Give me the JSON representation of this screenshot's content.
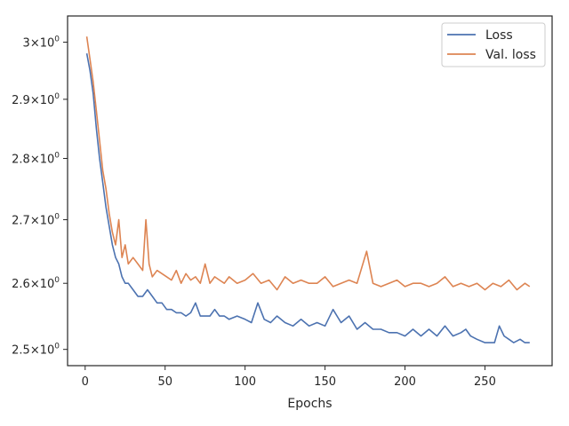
{
  "chart_data": {
    "type": "line",
    "xlabel": "Epochs",
    "ylabel": "",
    "yscale": "log",
    "xlim": [
      -11,
      292
    ],
    "ylim": [
      2.476,
      3.047
    ],
    "grid": false,
    "legend_position": "top-right",
    "x_ticks": [
      0,
      50,
      100,
      150,
      200,
      250
    ],
    "x_tick_labels": [
      "0",
      "50",
      "100",
      "150",
      "200",
      "250"
    ],
    "y_ticks": [
      2.5,
      2.6,
      2.7,
      2.8,
      2.9,
      3.0
    ],
    "y_tick_labels": [
      {
        "base": "2.5",
        "exp": "0"
      },
      {
        "base": "2.6",
        "exp": "0"
      },
      {
        "base": "2.7",
        "exp": "0"
      },
      {
        "base": "2.8",
        "exp": "0"
      },
      {
        "base": "2.9",
        "exp": "0"
      },
      {
        "base": "3",
        "exp": "0"
      }
    ],
    "series": [
      {
        "name": "Loss",
        "color": "#4c72b0",
        "x": [
          1,
          3,
          5,
          7,
          9,
          11,
          13,
          15,
          17,
          19,
          21,
          23,
          25,
          27,
          30,
          33,
          36,
          39,
          42,
          45,
          48,
          51,
          54,
          57,
          60,
          63,
          66,
          69,
          72,
          75,
          78,
          81,
          84,
          87,
          90,
          95,
          100,
          104,
          108,
          112,
          116,
          120,
          125,
          130,
          135,
          140,
          145,
          150,
          155,
          160,
          165,
          170,
          175,
          180,
          185,
          190,
          195,
          200,
          205,
          210,
          215,
          220,
          225,
          230,
          235,
          238,
          241,
          245,
          250,
          253,
          256,
          259,
          262,
          265,
          268,
          272,
          275,
          278
        ],
        "y": [
          2.98,
          2.95,
          2.91,
          2.85,
          2.8,
          2.76,
          2.72,
          2.69,
          2.66,
          2.64,
          2.63,
          2.61,
          2.6,
          2.6,
          2.59,
          2.58,
          2.58,
          2.59,
          2.58,
          2.57,
          2.57,
          2.56,
          2.56,
          2.555,
          2.555,
          2.55,
          2.555,
          2.57,
          2.55,
          2.55,
          2.55,
          2.56,
          2.55,
          2.55,
          2.545,
          2.55,
          2.545,
          2.54,
          2.57,
          2.545,
          2.54,
          2.55,
          2.54,
          2.535,
          2.545,
          2.535,
          2.54,
          2.535,
          2.56,
          2.54,
          2.55,
          2.53,
          2.54,
          2.53,
          2.53,
          2.525,
          2.525,
          2.52,
          2.53,
          2.52,
          2.53,
          2.52,
          2.535,
          2.52,
          2.525,
          2.53,
          2.52,
          2.515,
          2.51,
          2.51,
          2.51,
          2.535,
          2.52,
          2.515,
          2.51,
          2.515,
          2.51,
          2.51
        ]
      },
      {
        "name": "Val. loss",
        "color": "#dd8452",
        "x": [
          1,
          3,
          5,
          7,
          9,
          11,
          13,
          15,
          17,
          19,
          21,
          23,
          25,
          27,
          30,
          33,
          36,
          38,
          40,
          42,
          45,
          48,
          51,
          54,
          57,
          60,
          63,
          66,
          69,
          72,
          75,
          78,
          81,
          84,
          87,
          90,
          95,
          100,
          105,
          110,
          115,
          120,
          125,
          130,
          135,
          140,
          145,
          150,
          155,
          160,
          165,
          170,
          176,
          180,
          185,
          190,
          195,
          200,
          205,
          210,
          215,
          220,
          225,
          230,
          235,
          240,
          245,
          250,
          255,
          260,
          265,
          270,
          275,
          278
        ],
        "y": [
          3.01,
          2.97,
          2.93,
          2.88,
          2.83,
          2.78,
          2.75,
          2.71,
          2.68,
          2.66,
          2.7,
          2.64,
          2.66,
          2.63,
          2.64,
          2.63,
          2.62,
          2.7,
          2.63,
          2.61,
          2.62,
          2.615,
          2.61,
          2.605,
          2.62,
          2.6,
          2.615,
          2.605,
          2.61,
          2.6,
          2.63,
          2.6,
          2.61,
          2.605,
          2.6,
          2.61,
          2.6,
          2.605,
          2.615,
          2.6,
          2.605,
          2.59,
          2.61,
          2.6,
          2.605,
          2.6,
          2.6,
          2.61,
          2.595,
          2.6,
          2.605,
          2.6,
          2.65,
          2.6,
          2.595,
          2.6,
          2.605,
          2.595,
          2.6,
          2.6,
          2.595,
          2.6,
          2.61,
          2.595,
          2.6,
          2.595,
          2.6,
          2.59,
          2.6,
          2.595,
          2.605,
          2.59,
          2.6,
          2.595
        ]
      }
    ]
  }
}
